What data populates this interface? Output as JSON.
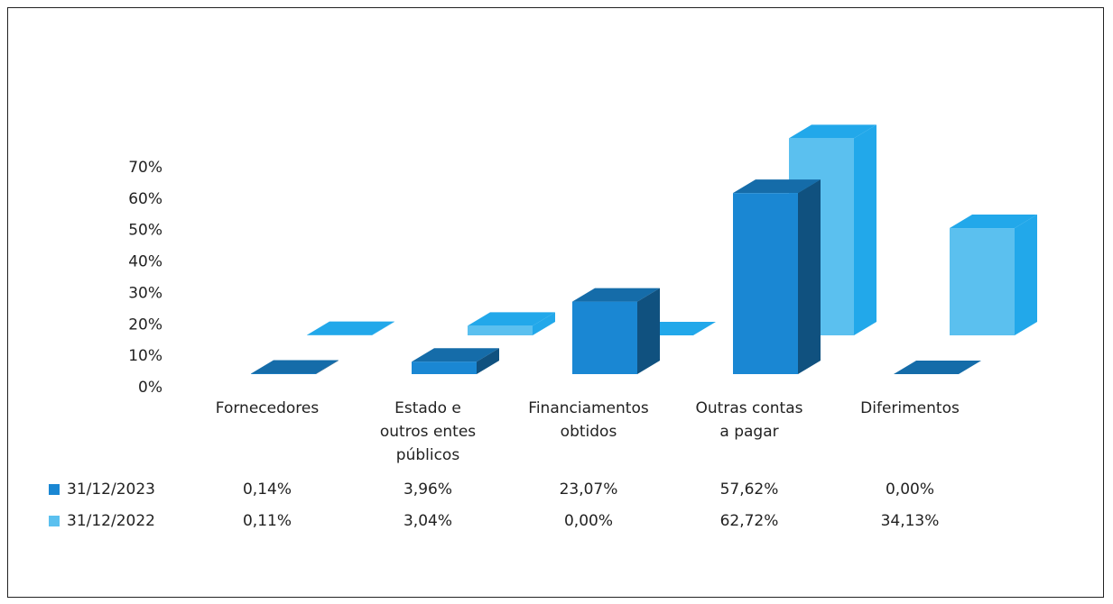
{
  "chart_data": {
    "type": "bar3d",
    "categories": [
      "Fornecedores",
      "Estado e outros entes públicos",
      "Financiamentos obtidos",
      "Outras contas a pagar",
      "Diferimentos"
    ],
    "series": [
      {
        "name": "31/12/2023",
        "color": "#1a87d3",
        "values": [
          0.14,
          3.96,
          23.07,
          57.62,
          0.0
        ],
        "value_labels": [
          "0,14%",
          "3,96%",
          "23,07%",
          "57,62%",
          "0,00%"
        ]
      },
      {
        "name": "31/12/2022",
        "color": "#5bc0ef",
        "values": [
          0.11,
          3.04,
          0.0,
          62.72,
          34.13
        ],
        "value_labels": [
          "0,11%",
          "3,04%",
          "0,00%",
          "62,72%",
          "34,13%"
        ]
      }
    ],
    "ylim": [
      0,
      70
    ],
    "yticks": [
      {
        "value": 0,
        "label": "0%"
      },
      {
        "value": 10,
        "label": "10%"
      },
      {
        "value": 20,
        "label": "20%"
      },
      {
        "value": 30,
        "label": "30%"
      },
      {
        "value": 40,
        "label": "40%"
      },
      {
        "value": 50,
        "label": "50%"
      },
      {
        "value": 60,
        "label": "60%"
      },
      {
        "value": 70,
        "label": "70%"
      }
    ]
  }
}
